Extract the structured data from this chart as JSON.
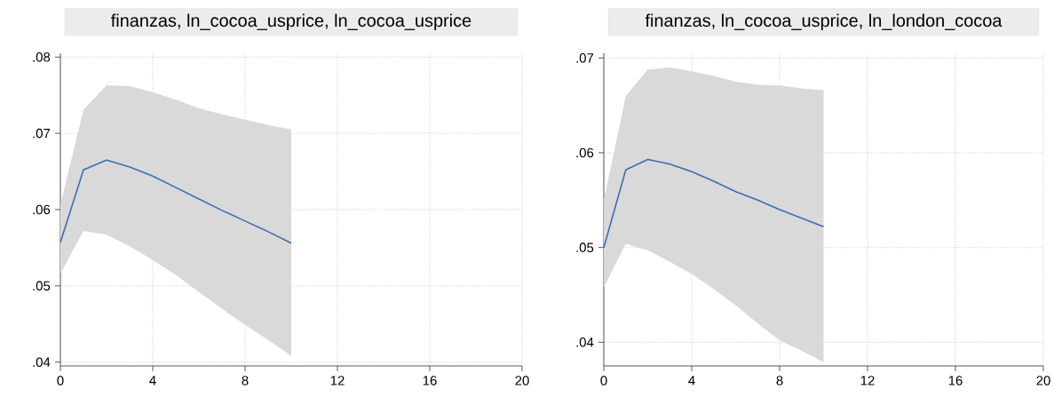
{
  "chart_data": [
    {
      "type": "line",
      "title": "finanzas, ln_cocoa_usprice, ln_cocoa_usprice",
      "x": [
        0,
        1,
        2,
        3,
        4,
        5,
        6,
        7,
        8,
        9,
        10
      ],
      "series": [
        {
          "color": "#3a6fb0",
          "values": [
            0.0557,
            0.0652,
            0.0665,
            0.0656,
            0.0644,
            0.0629,
            0.0614,
            0.0599,
            0.0585,
            0.0571,
            0.0556
          ],
          "upper": [
            0.0606,
            0.0731,
            0.0763,
            0.0762,
            0.0754,
            0.0744,
            0.0733,
            0.0725,
            0.0718,
            0.0711,
            0.0705
          ],
          "lower": [
            0.0516,
            0.0572,
            0.0567,
            0.0552,
            0.0534,
            0.0514,
            0.0492,
            0.047,
            0.0449,
            0.0429,
            0.0408
          ]
        }
      ],
      "xlim": [
        0,
        20
      ],
      "xticks": [
        0,
        4,
        8,
        12,
        16,
        20
      ],
      "ylim": [
        0.0395,
        0.0805
      ],
      "yticks": [
        {
          "value": 0.04,
          "label": ".04"
        },
        {
          "value": 0.05,
          "label": ".05"
        },
        {
          "value": 0.06,
          "label": ".06"
        },
        {
          "value": 0.07,
          "label": ".07"
        },
        {
          "value": 0.08,
          "label": ".08"
        }
      ],
      "grid": true
    },
    {
      "type": "line",
      "title": "finanzas, ln_cocoa_usprice, ln_london_cocoa",
      "x": [
        0,
        1,
        2,
        3,
        4,
        5,
        6,
        7,
        8,
        9,
        10
      ],
      "series": [
        {
          "color": "#3a6fb0",
          "values": [
            0.05,
            0.0582,
            0.0593,
            0.0588,
            0.058,
            0.057,
            0.0559,
            0.055,
            0.054,
            0.0531,
            0.0522
          ],
          "upper": [
            0.055,
            0.066,
            0.0688,
            0.069,
            0.0686,
            0.0681,
            0.0675,
            0.0672,
            0.0671,
            0.0668,
            0.0666
          ],
          "lower": [
            0.0458,
            0.0504,
            0.0497,
            0.0485,
            0.0472,
            0.0456,
            0.0439,
            0.042,
            0.0402,
            0.0391,
            0.0379
          ]
        }
      ],
      "xlim": [
        0,
        20
      ],
      "xticks": [
        0,
        4,
        8,
        12,
        16,
        20
      ],
      "ylim": [
        0.0375,
        0.0705
      ],
      "yticks": [
        {
          "value": 0.04,
          "label": ".04"
        },
        {
          "value": 0.05,
          "label": ".05"
        },
        {
          "value": 0.06,
          "label": ".06"
        },
        {
          "value": 0.07,
          "label": ".07"
        }
      ],
      "grid": true
    }
  ]
}
